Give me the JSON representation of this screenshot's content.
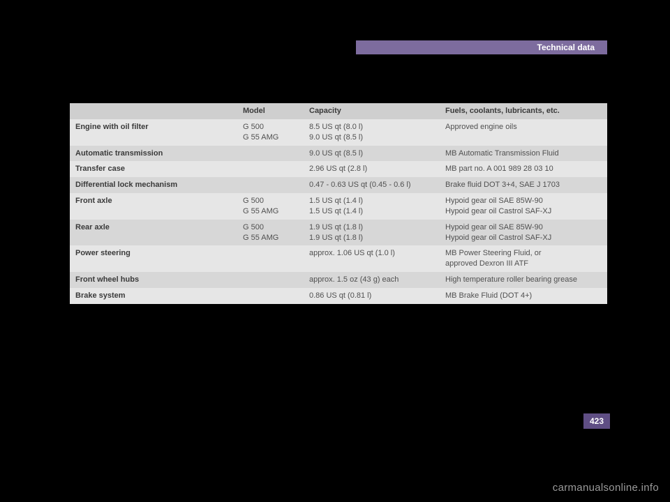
{
  "header": {
    "title": "Technical data"
  },
  "page_number": "423",
  "watermark": "carmanualsonline.info",
  "colors": {
    "accent": "#7d6c9e",
    "tab": "#5f4e84",
    "row_head": "#cfcfcf",
    "row_a": "#e6e6e6",
    "row_b": "#d7d7d7",
    "bg": "#000000"
  },
  "table": {
    "headers": {
      "component": "",
      "model": "Model",
      "capacity": "Capacity",
      "fluids": "Fuels, coolants, lubricants, etc."
    },
    "rows": [
      {
        "component": "Engine with oil filter",
        "model": "G 500\nG 55 AMG",
        "capacity": "8.5 US qt (8.0 l)\n9.0 US qt (8.5 l)",
        "fluids": "Approved engine oils",
        "shade": "a"
      },
      {
        "component": "Automatic transmission",
        "model": "",
        "capacity": "9.0 US qt (8.5 l)",
        "fluids": "MB Automatic Transmission Fluid",
        "shade": "b"
      },
      {
        "component": "Transfer case",
        "model": "",
        "capacity": "2.96 US qt (2.8 l)",
        "fluids": "MB part no. A 001 989 28 03 10",
        "shade": "a"
      },
      {
        "component": "Differential lock mechanism",
        "model": "",
        "capacity": "0.47 - 0.63 US qt (0.45 - 0.6 l)",
        "fluids": "Brake fluid DOT 3+4, SAE J 1703",
        "shade": "b"
      },
      {
        "component": "Front axle",
        "model": "G 500\nG 55 AMG",
        "capacity": "1.5 US qt (1.4 l)\n1.5 US qt (1.4 l)",
        "fluids": "Hypoid gear oil SAE 85W-90\nHypoid gear oil Castrol SAF-XJ",
        "shade": "a"
      },
      {
        "component": "Rear axle",
        "model": "G 500\nG 55 AMG",
        "capacity": "1.9 US qt (1.8 l)\n1.9 US qt (1.8 l)",
        "fluids": "Hypoid gear oil SAE 85W-90\nHypoid gear oil Castrol SAF-XJ",
        "shade": "b"
      },
      {
        "component": "Power steering",
        "model": "",
        "capacity": "approx. 1.06 US qt (1.0 l)",
        "fluids": "MB Power Steering Fluid, or\napproved Dexron III ATF",
        "shade": "a"
      },
      {
        "component": "Front wheel hubs",
        "model": "",
        "capacity": "approx. 1.5 oz (43 g) each",
        "fluids": "High temperature roller bearing grease",
        "shade": "b"
      },
      {
        "component": "Brake system",
        "model": "",
        "capacity": "0.86 US qt (0.81 l)",
        "fluids": "MB Brake Fluid (DOT 4+)",
        "shade": "a"
      }
    ]
  }
}
